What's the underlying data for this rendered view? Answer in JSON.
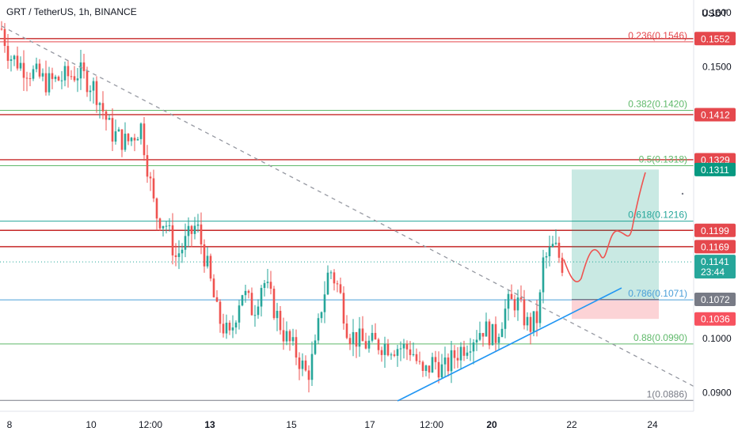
{
  "header": {
    "title": "GRT / TetherUS, 1h, BINANCE"
  },
  "axis": {
    "currency": "USDT",
    "price_ticks": [
      "0.1600",
      "0.1500",
      "0.1000",
      "0.0900"
    ],
    "time_ticks": [
      "8",
      "10",
      "12:00",
      "13",
      "15",
      "17",
      "12:00",
      "20",
      "22",
      "24"
    ]
  },
  "chart_data": {
    "type": "candlestick",
    "ylim": [
      0.0866,
      0.1623
    ],
    "fib_levels": [
      {
        "label": "0.236(0.1546)",
        "value": 0.1546,
        "color": "#e5484d"
      },
      {
        "label": "0.382(0.1420)",
        "value": 0.142,
        "color": "#5fb96a"
      },
      {
        "label": "0.5(0.1318)",
        "value": 0.1318,
        "color": "#5fb96a"
      },
      {
        "label": "0.618(0.1216)",
        "value": 0.1216,
        "color": "#26a69a"
      },
      {
        "label": "0.786(0.1071)",
        "value": 0.1071,
        "color": "#4a9fd8"
      },
      {
        "label": "0.88(0.0990)",
        "value": 0.099,
        "color": "#5fb96a"
      },
      {
        "label": "1(0.0886)",
        "value": 0.0886,
        "color": "#787b86"
      }
    ],
    "resistance_lines": [
      0.1552,
      0.1412,
      0.1329,
      0.1199,
      0.1169
    ],
    "price_tags": [
      {
        "text": "0.1552",
        "value": 0.1552,
        "color": "#e5484d"
      },
      {
        "text": "0.1412",
        "value": 0.1412,
        "color": "#e5484d"
      },
      {
        "text": "0.1329",
        "value": 0.1329,
        "color": "#e5484d"
      },
      {
        "text": "0.1311",
        "value": 0.1311,
        "color": "#089981"
      },
      {
        "text": "0.1199",
        "value": 0.1199,
        "color": "#e5484d"
      },
      {
        "text": "0.1169",
        "value": 0.1169,
        "color": "#e5484d"
      },
      {
        "text": "0.1141",
        "value": 0.1141,
        "color": "#26a69a",
        "sub": "23:44"
      },
      {
        "text": "0.1072",
        "value": 0.1072,
        "color": "#787b86"
      },
      {
        "text": "0.1036",
        "value": 0.1036,
        "color": "#f7525f"
      }
    ],
    "position": {
      "entry": 0.1072,
      "target": 0.1311,
      "stop": 0.1036
    },
    "current_price": 0.1141,
    "colors": {
      "up": "#26a69a",
      "down": "#ef5350",
      "projection": "#ef5350",
      "trendline": "#2196f3",
      "dashed": "#9598a1"
    }
  }
}
